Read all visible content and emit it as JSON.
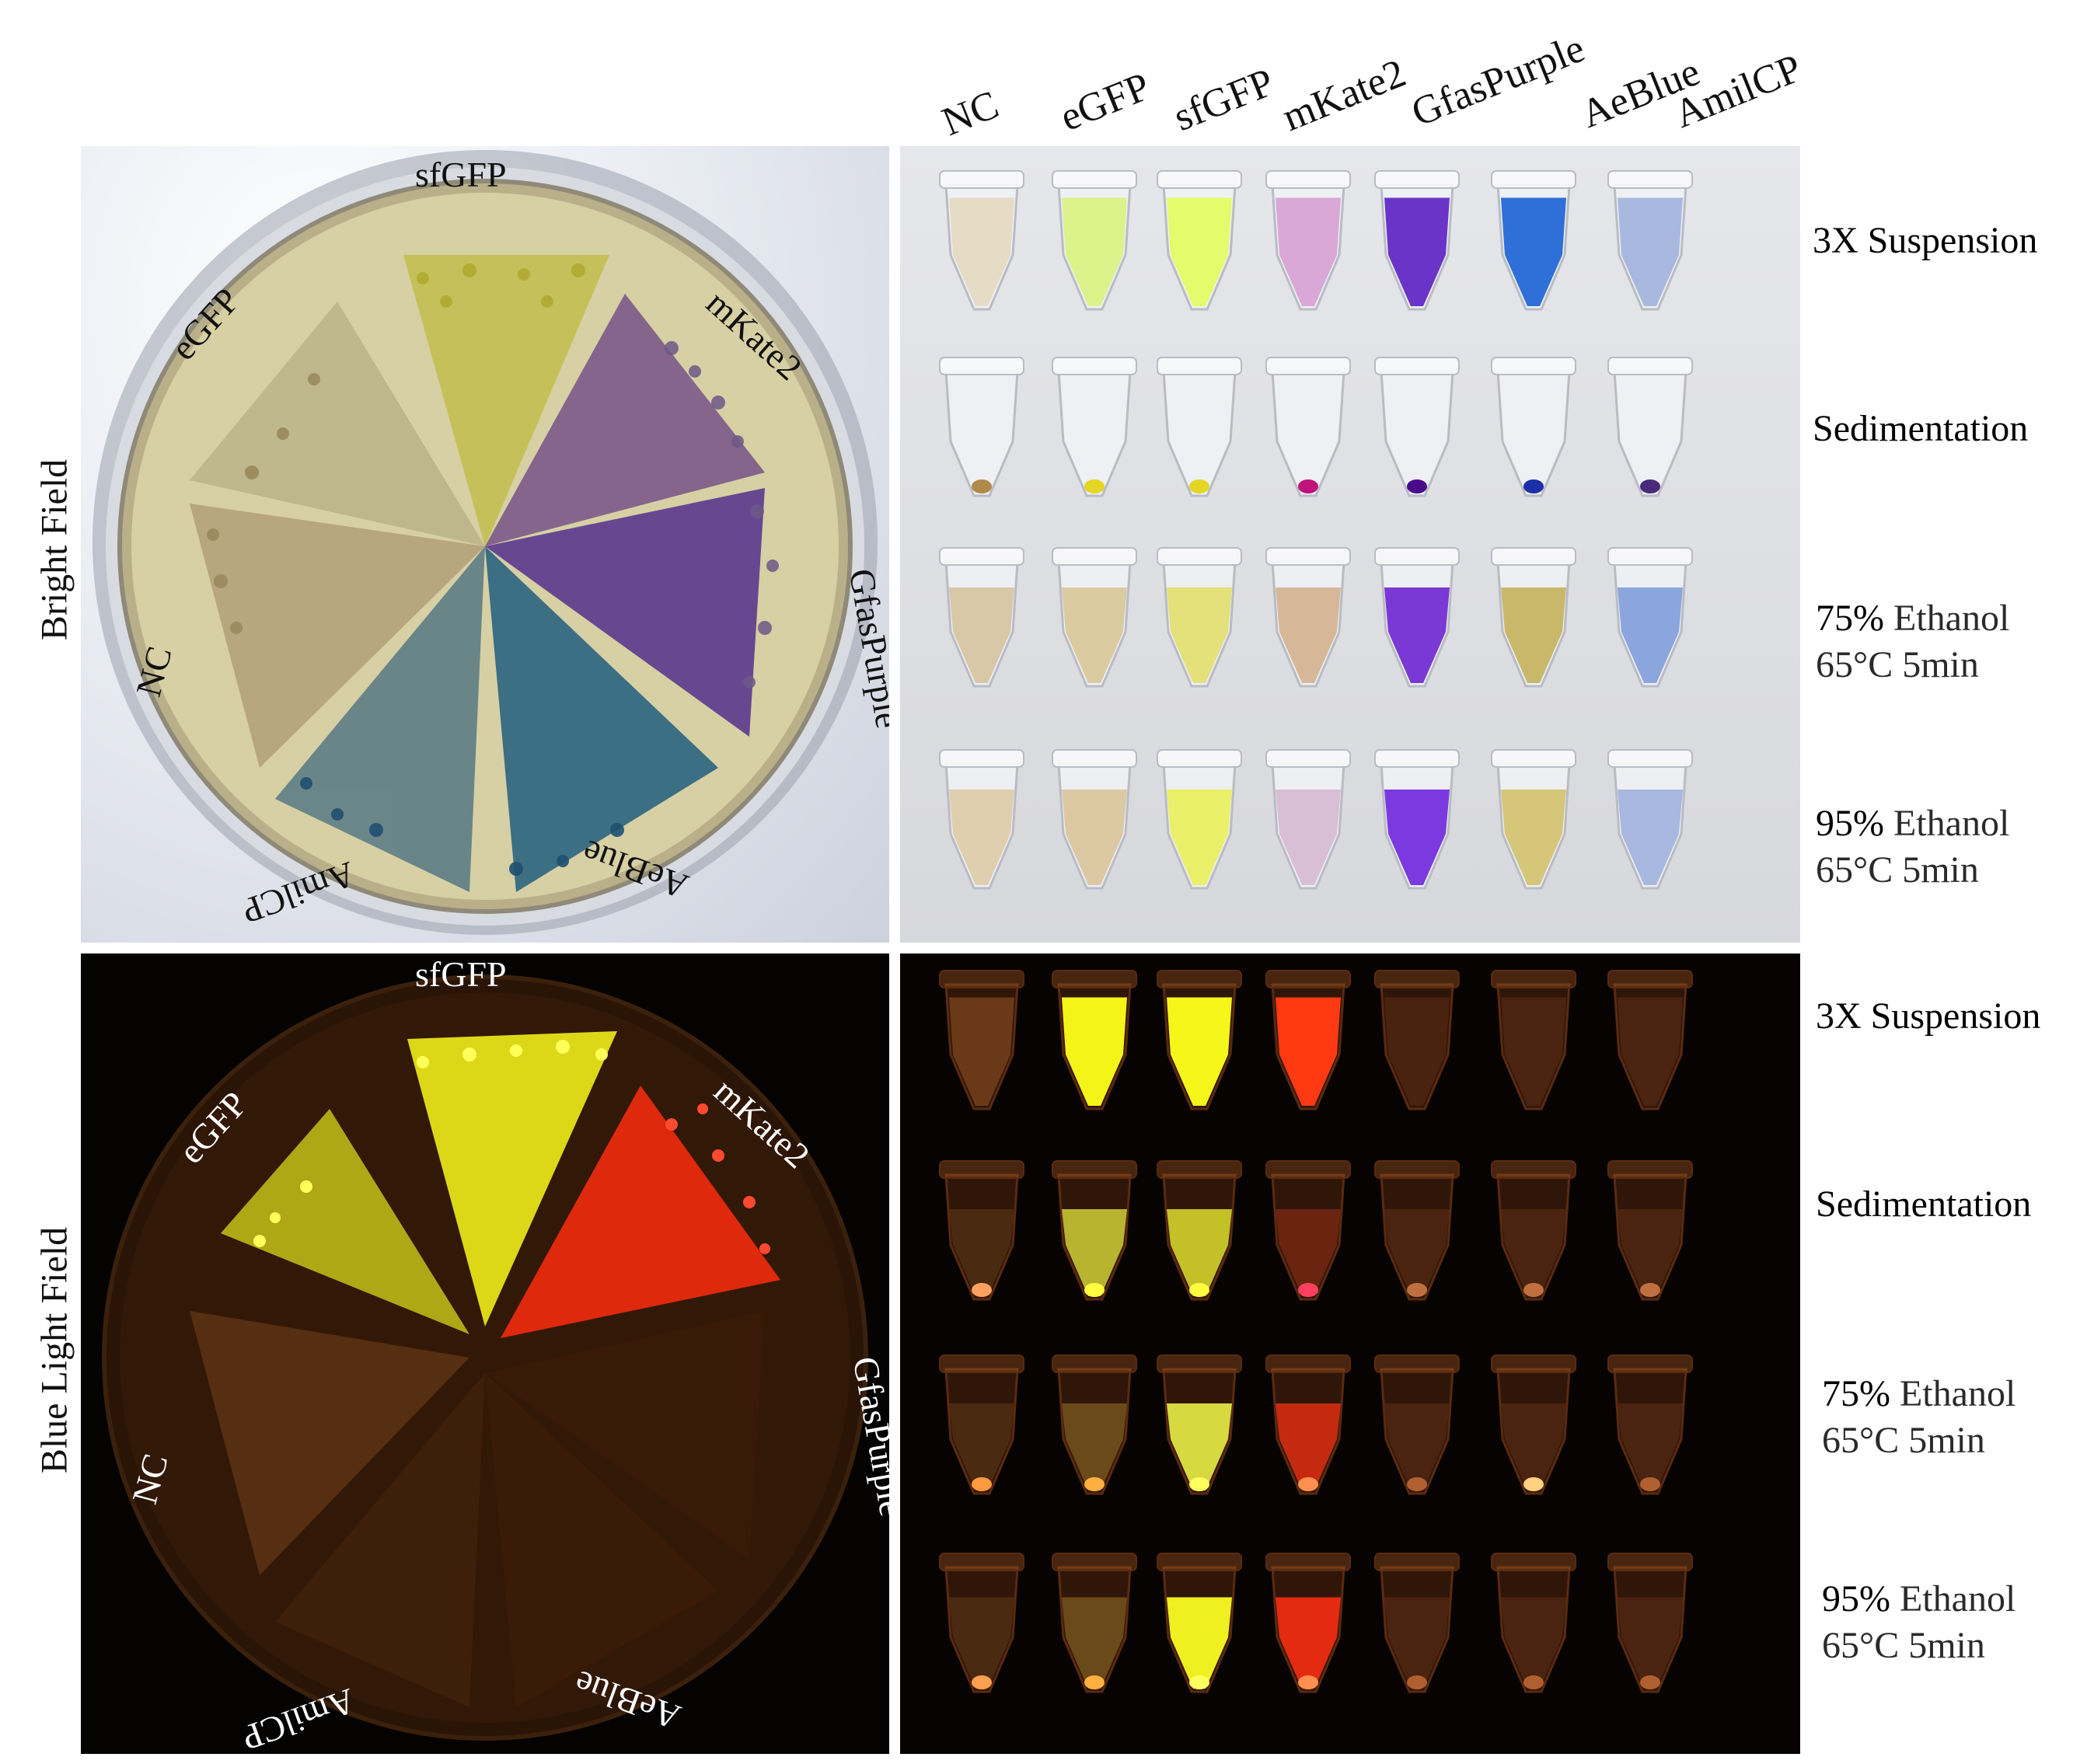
{
  "tube_columns": [
    "NC",
    "eGFP",
    "sfGFP",
    "mKate2",
    "GfasPurple",
    "AeBlue",
    "AmilCP"
  ],
  "side_labels": {
    "top": "Bright Field",
    "bottom": "Blue Light  Field"
  },
  "rows": {
    "suspension": "3X Suspension",
    "sedimentation": "Sedimentation",
    "eth75_pct": "75%",
    "eth75_word": " Ethanol",
    "eth75_cond": "65°C 5min",
    "eth95_pct": "95%",
    "eth95_word": " Ethanol",
    "eth95_cond": "65°C 5min"
  },
  "plate_labels": {
    "sfgfp": "sfGFP",
    "mkate2": "mKate2",
    "gfaspurple": "GfasPurple",
    "aeblue": "AeBlue",
    "amilcp": "AmilCP",
    "nc": "NC",
    "egfp": "eGFP"
  },
  "colors": {
    "nc": "#b59a6e",
    "egfp": "#b8b45a",
    "sfgfp": "#c8c440",
    "mkate2": "#6a3f7c",
    "gfaspurple": "#4a2280",
    "aeblue": "#1f5577",
    "amilcp": "#2f5a78",
    "fl_yellow": "#f2f21a",
    "fl_red": "#ff2a10",
    "fl_dim": "#4a2a10"
  }
}
